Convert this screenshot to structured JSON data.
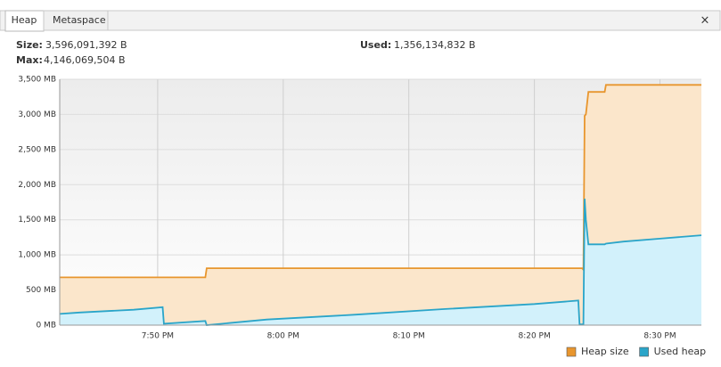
{
  "tabs": [
    "Heap",
    "Metaspace"
  ],
  "close": "×",
  "stats": {
    "size_label": "Size:",
    "size_value": "3,596,091,392 B",
    "used_label": "Used:",
    "used_value": "1,356,134,832 B",
    "max_label": "Max:",
    "max_value": "4,146,069,504 B"
  },
  "chart_data": {
    "type": "area",
    "x": [
      1182.2,
      1183.8,
      1186.0,
      1188.1,
      1190.4,
      1190.5,
      1193.8,
      1193.9,
      1198.7,
      1205.8,
      1212.9,
      1220.0,
      1223.5,
      1223.6,
      1223.8,
      1223.9,
      1224.0,
      1224.1,
      1224.3,
      1225.6,
      1225.7,
      1227.1,
      1229.9,
      1233.3
    ],
    "series": [
      {
        "name": "Heap size",
        "color": "#e8962e",
        "fill": "#fbe6cb",
        "values": [
          680,
          680,
          680,
          680,
          680,
          680,
          680,
          810,
          810,
          810,
          810,
          810,
          810,
          810,
          810,
          790,
          2980,
          3000,
          3320,
          3320,
          3420,
          3420,
          3420,
          3420
        ]
      },
      {
        "name": "Used heap",
        "color": "#2aa5c9",
        "fill": "#d2f1fb",
        "values": [
          160,
          180,
          200,
          220,
          255,
          20,
          60,
          0,
          80,
          150,
          230,
          300,
          350,
          10,
          10,
          10,
          1800,
          1500,
          1150,
          1150,
          1160,
          1190,
          1230,
          1280
        ]
      }
    ],
    "xlim": [
      1182.2,
      1233.3
    ],
    "xticks": [
      {
        "value": 1190,
        "label": "7:50 PM"
      },
      {
        "value": 1200,
        "label": "8:00 PM"
      },
      {
        "value": 1210,
        "label": "8:10 PM"
      },
      {
        "value": 1220,
        "label": "8:20 PM"
      },
      {
        "value": 1230,
        "label": "8:30 PM"
      }
    ],
    "ylim": [
      0,
      3500
    ],
    "yticks": [
      {
        "value": 0,
        "label": "0 MB"
      },
      {
        "value": 500,
        "label": "500 MB"
      },
      {
        "value": 1000,
        "label": "1,000 MB"
      },
      {
        "value": 1500,
        "label": "1,500 MB"
      },
      {
        "value": 2000,
        "label": "2,000 MB"
      },
      {
        "value": 2500,
        "label": "2,500 MB"
      },
      {
        "value": 3000,
        "label": "3,000 MB"
      },
      {
        "value": 3500,
        "label": "3,500 MB"
      }
    ],
    "grid": true,
    "legend": "bottom-right"
  }
}
